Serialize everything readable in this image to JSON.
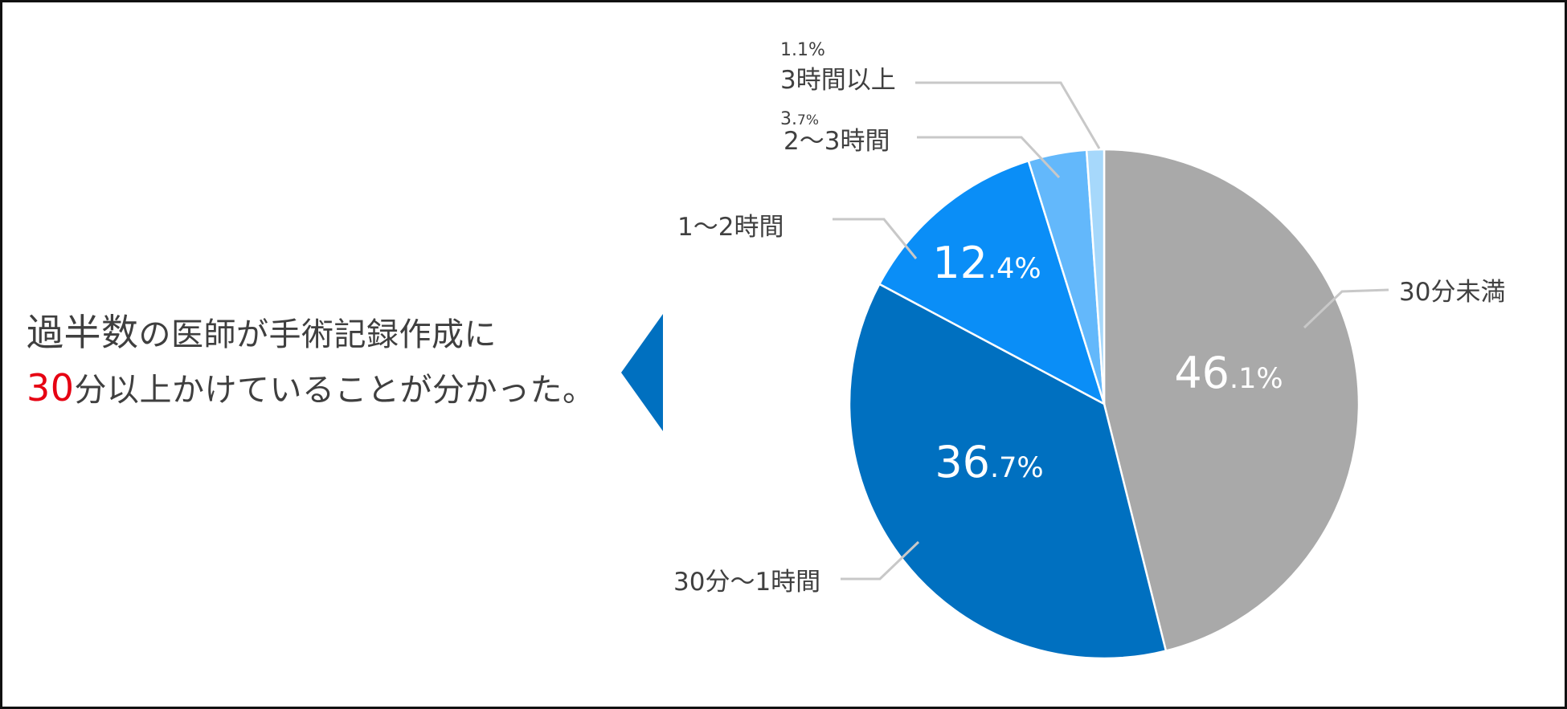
{
  "headline": {
    "line1_part1": "過半数",
    "line1_part2": "の医師が手術記録作成に",
    "line2_part1": "30",
    "line2_part2": "分以上かけていることが分かった。"
  },
  "colors": {
    "frame": "#111111",
    "pointer": "#0070c0",
    "accent_text": "#e60012",
    "text": "#404040",
    "leader": "#c8c8c8"
  },
  "chart_data": {
    "type": "pie",
    "start_angle_deg": 0,
    "direction": "clockwise",
    "slices": [
      {
        "label": "30分未満",
        "value": 46.1,
        "int_part": "46",
        "dec_part": ".1%",
        "color": "#a9a9a9"
      },
      {
        "label": "30分〜1時間",
        "value": 36.7,
        "int_part": "36",
        "dec_part": ".7%",
        "color": "#0070c0"
      },
      {
        "label": "1〜2時間",
        "value": 12.4,
        "int_part": "12",
        "dec_part": ".4%",
        "color": "#0a8ef7"
      },
      {
        "label": "2〜3時間",
        "value": 3.7,
        "pct_main": "3.",
        "pct_sub": "7%",
        "color": "#63b8fb"
      },
      {
        "label": "3時間以上",
        "value": 1.1,
        "pct_text": "1.1%",
        "color": "#a6d8fb"
      }
    ]
  }
}
